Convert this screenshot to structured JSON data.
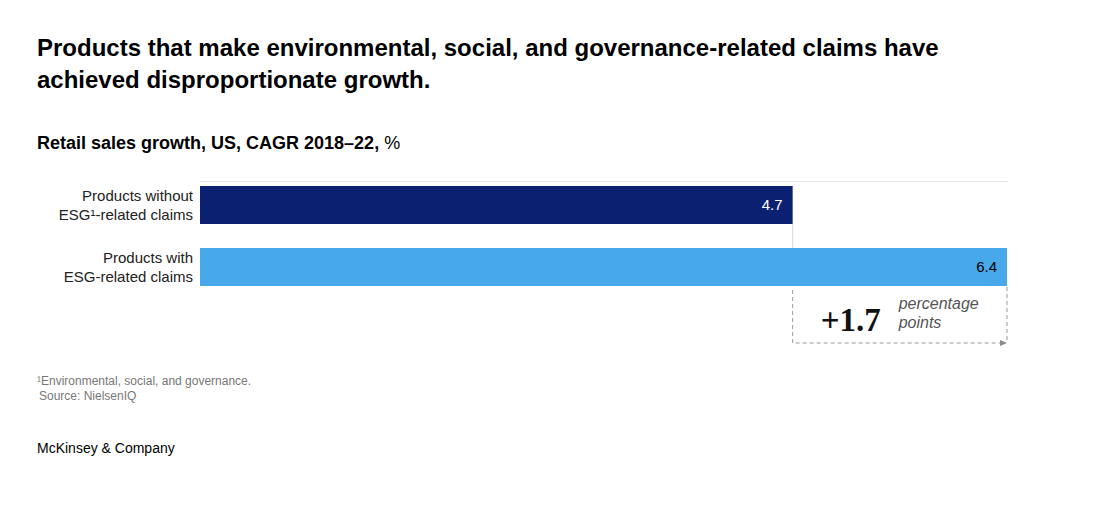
{
  "chart_data": {
    "type": "bar",
    "orientation": "horizontal",
    "title": "Products that make environmental, social, and governance-related claims have\nachieved disproportionate growth.",
    "subtitle": "Retail sales growth, US, CAGR 2018–22,",
    "unit": "%",
    "categories": [
      "Products without\nESG¹-related claims",
      "Products with\nESG-related claims"
    ],
    "values": [
      4.7,
      6.4
    ],
    "colors": [
      "#0b2070",
      "#47a8ea"
    ],
    "data_labels": true,
    "tick_labels": false,
    "xlim": [
      0,
      6.4
    ],
    "annotation": {
      "value": 1.7,
      "label": "+1.7",
      "text": "percentage\npoints"
    },
    "footnote": "¹Environmental, social, and governance.",
    "source": "Source: NielsenIQ",
    "brand": "McKinsey & Company"
  }
}
